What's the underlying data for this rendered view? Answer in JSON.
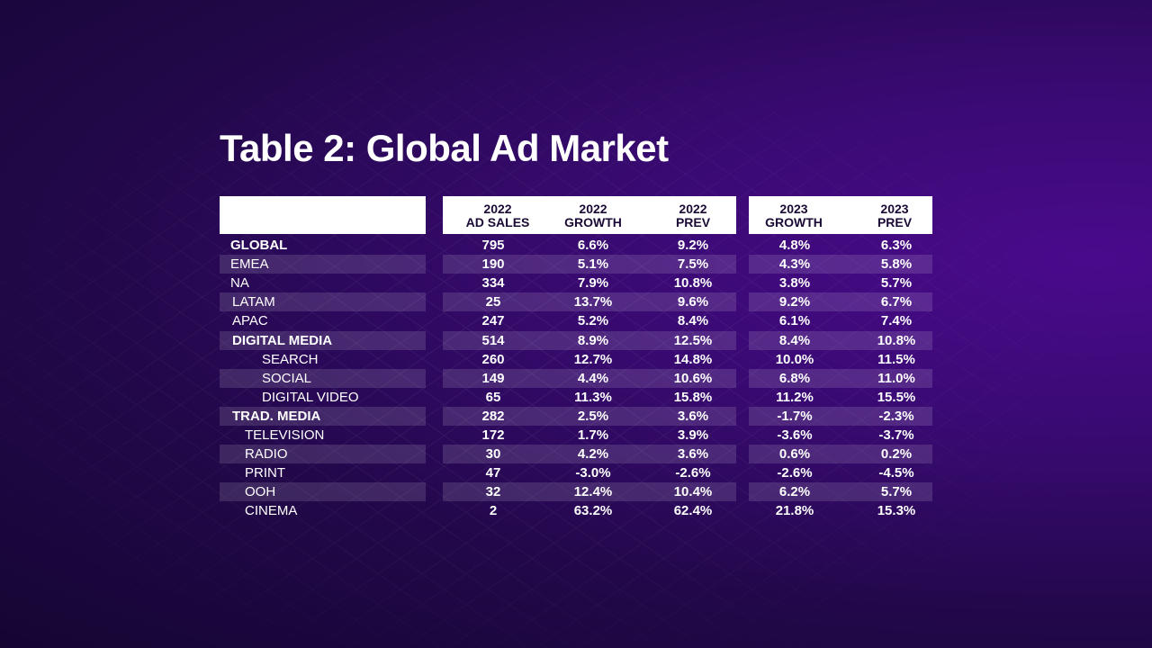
{
  "title": "Table 2: Global Ad Market",
  "headers": [
    {
      "line1": "2022",
      "line2": "AD SALES"
    },
    {
      "line1": "2022",
      "line2": "GROWTH"
    },
    {
      "line1": "2022",
      "line2": "PREV"
    },
    {
      "line1": "2023",
      "line2": "GROWTH"
    },
    {
      "line1": "2023",
      "line2": "PREV"
    }
  ],
  "rows": [
    {
      "label": "GLOBAL",
      "bold": true,
      "indent": 0,
      "values": [
        "795",
        "6.6%",
        "9.2%",
        "4.8%",
        "6.3%"
      ]
    },
    {
      "label": "EMEA",
      "bold": false,
      "indent": 0,
      "values": [
        "190",
        "5.1%",
        "7.5%",
        "4.3%",
        "5.8%"
      ]
    },
    {
      "label": "NA",
      "bold": false,
      "indent": 0,
      "values": [
        "334",
        "7.9%",
        "10.8%",
        "3.8%",
        "5.7%"
      ]
    },
    {
      "label": "LATAM",
      "bold": false,
      "indent": 1,
      "values": [
        "25",
        "13.7%",
        "9.6%",
        "9.2%",
        "6.7%"
      ]
    },
    {
      "label": "APAC",
      "bold": false,
      "indent": 1,
      "values": [
        "247",
        "5.2%",
        "8.4%",
        "6.1%",
        "7.4%"
      ]
    },
    {
      "label": "DIGITAL MEDIA",
      "bold": true,
      "indent": 1,
      "values": [
        "514",
        "8.9%",
        "12.5%",
        "8.4%",
        "10.8%"
      ]
    },
    {
      "label": "SEARCH",
      "bold": false,
      "indent": 3,
      "values": [
        "260",
        "12.7%",
        "14.8%",
        "10.0%",
        "11.5%"
      ]
    },
    {
      "label": "SOCIAL",
      "bold": false,
      "indent": 3,
      "values": [
        "149",
        "4.4%",
        "10.6%",
        "6.8%",
        "11.0%"
      ]
    },
    {
      "label": "DIGITAL VIDEO",
      "bold": false,
      "indent": 3,
      "values": [
        "65",
        "11.3%",
        "15.8%",
        "11.2%",
        "15.5%"
      ]
    },
    {
      "label": "TRAD. MEDIA",
      "bold": true,
      "indent": 1,
      "values": [
        "282",
        "2.5%",
        "3.6%",
        "-1.7%",
        "-2.3%"
      ]
    },
    {
      "label": "TELEVISION",
      "bold": false,
      "indent": 2,
      "values": [
        "172",
        "1.7%",
        "3.9%",
        "-3.6%",
        "-3.7%"
      ]
    },
    {
      "label": "RADIO",
      "bold": false,
      "indent": 2,
      "values": [
        "30",
        "4.2%",
        "3.6%",
        "0.6%",
        "0.2%"
      ]
    },
    {
      "label": "PRINT",
      "bold": false,
      "indent": 2,
      "values": [
        "47",
        "-3.0%",
        "-2.6%",
        "-2.6%",
        "-4.5%"
      ]
    },
    {
      "label": "OOH",
      "bold": false,
      "indent": 2,
      "values": [
        "32",
        "12.4%",
        "10.4%",
        "6.2%",
        "5.7%"
      ]
    },
    {
      "label": "CINEMA",
      "bold": false,
      "indent": 2,
      "values": [
        "2",
        "63.2%",
        "62.4%",
        "21.8%",
        "15.3%"
      ]
    }
  ]
}
